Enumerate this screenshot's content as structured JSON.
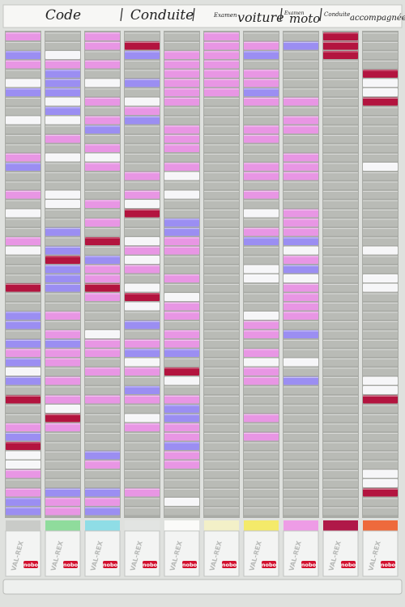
{
  "header": {
    "columns": [
      {
        "large": "Code"
      },
      {
        "large": "Conduite"
      },
      {
        "small": "Examen",
        "large": "voiture"
      },
      {
        "small": "Examen",
        "large": "moto"
      },
      {
        "small": "Conduite",
        "large": "accompagnée"
      }
    ]
  },
  "boxes": {
    "brand": "VAL-REX",
    "logo": "nobo"
  }
}
